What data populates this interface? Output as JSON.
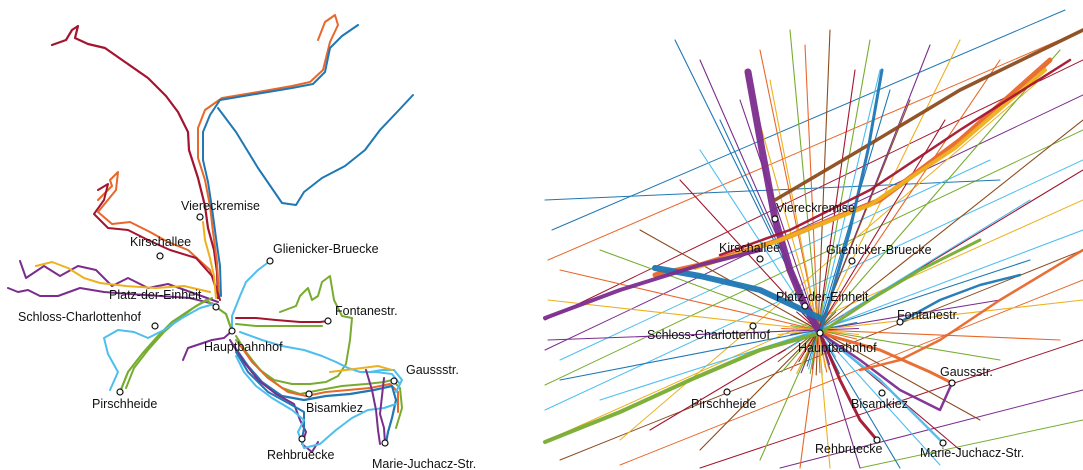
{
  "colors": {
    "blue": "#1f77b4",
    "orange": "#e8672a",
    "darkred": "#a3152f",
    "purple": "#7b2d8e",
    "green": "#77ac30",
    "lightblue": "#4dbeee",
    "yellow": "#edb120",
    "brown": "#8c4b1e",
    "station_fill": "#ffffff",
    "station_stroke": "#111111"
  },
  "panels": [
    {
      "id": "geographic-map",
      "stations": [
        {
          "label": "Viereckremise"
        },
        {
          "label": "Kirschallee"
        },
        {
          "label": "Glienicker-Bruecke"
        },
        {
          "label": "Platz-der-Einheit"
        },
        {
          "label": "Schloss-Charlottenhof"
        },
        {
          "label": "Fontanestr."
        },
        {
          "label": "Hauptbahnhof"
        },
        {
          "label": "Gaussstr."
        },
        {
          "label": "Pirschheide"
        },
        {
          "label": "Bisamkiez"
        },
        {
          "label": "Rehbruecke"
        },
        {
          "label": "Marie-Juchacz-Str."
        }
      ]
    },
    {
      "id": "distorted-map",
      "stations": [
        {
          "label": "Viereckremise"
        },
        {
          "label": "Kirschallee"
        },
        {
          "label": "Glienicker-Bruecke"
        },
        {
          "label": "Platz-der-Einheit"
        },
        {
          "label": "Schloss-Charlottenhof"
        },
        {
          "label": "Fontanestr."
        },
        {
          "label": "Hauptbahnhof"
        },
        {
          "label": "Gaussstr."
        },
        {
          "label": "Pirschheide"
        },
        {
          "label": "Bisamkiez"
        },
        {
          "label": "Rehbruecke"
        },
        {
          "label": "Marie-Juchacz-Str."
        }
      ]
    }
  ]
}
